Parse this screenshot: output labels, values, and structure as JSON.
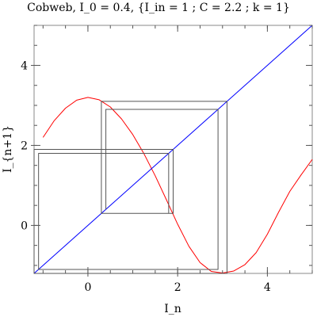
{
  "chart_data": {
    "type": "line",
    "title": "Cobweb, I_0 = 0.4, {I_in = 1 ; C = 2.2 ; k = 1}",
    "xlabel": "I_n",
    "ylabel": "I_{n+1}",
    "xlim": [
      -1.2,
      5.0
    ],
    "ylim": [
      -1.2,
      5.0
    ],
    "x_ticks": [
      0,
      2,
      4
    ],
    "y_ticks": [
      0,
      2,
      4
    ],
    "x_tick_labels": [
      "0",
      "2",
      "4"
    ],
    "y_tick_labels": [
      "0",
      "2",
      "4"
    ],
    "grid": false,
    "series": [
      {
        "kind": "map-curve",
        "color": "#ff0000",
        "x": [
          -1.0,
          -0.75,
          -0.5,
          -0.25,
          0.0,
          0.25,
          0.5,
          0.75,
          1.0,
          1.25,
          1.5,
          1.75,
          2.0,
          2.25,
          2.5,
          2.75,
          3.0,
          3.25,
          3.5,
          3.75,
          4.0,
          4.25,
          4.5,
          4.75,
          5.0
        ],
        "y": [
          2.2,
          2.62,
          2.93,
          3.13,
          3.2,
          3.14,
          2.96,
          2.66,
          2.27,
          1.79,
          1.24,
          0.64,
          0.03,
          -0.52,
          -0.93,
          -1.15,
          -1.19,
          -1.14,
          -0.98,
          -0.68,
          -0.22,
          0.33,
          0.85,
          1.26,
          1.65
        ]
      },
      {
        "kind": "identity-line",
        "color": "#0000ff",
        "x": [
          -1.2,
          5.0
        ],
        "y": [
          -1.2,
          5.0
        ]
      },
      {
        "kind": "cobweb",
        "color": "#555555",
        "x": [
          0.4,
          0.4,
          2.9,
          2.9,
          -1.1,
          -1.1,
          1.8,
          1.8,
          0.3,
          0.3,
          3.1,
          3.1,
          -1.2,
          -1.2,
          1.9,
          1.9,
          0.3,
          0.3
        ],
        "y": [
          0.4,
          2.9,
          2.9,
          -1.1,
          -1.1,
          1.8,
          1.8,
          0.3,
          0.3,
          3.1,
          3.1,
          -1.2,
          -1.2,
          1.9,
          1.9,
          0.3,
          0.3,
          3.0
        ]
      }
    ]
  }
}
